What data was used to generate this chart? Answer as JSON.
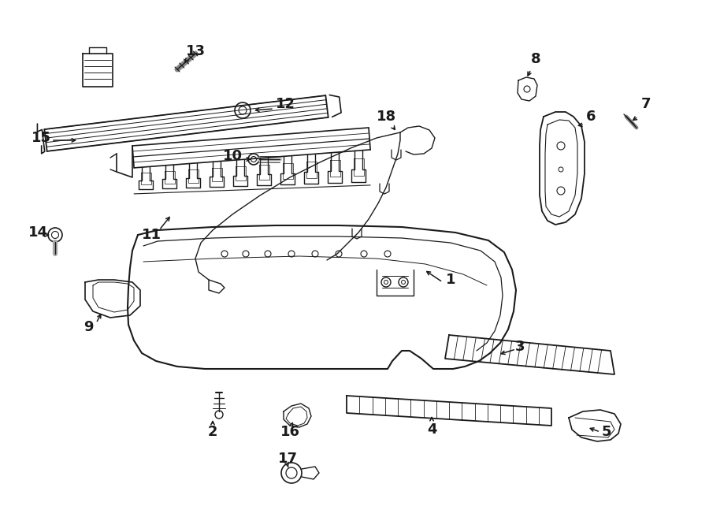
{
  "bg_color": "#ffffff",
  "line_color": "#1a1a1a",
  "lw": 1.1
}
